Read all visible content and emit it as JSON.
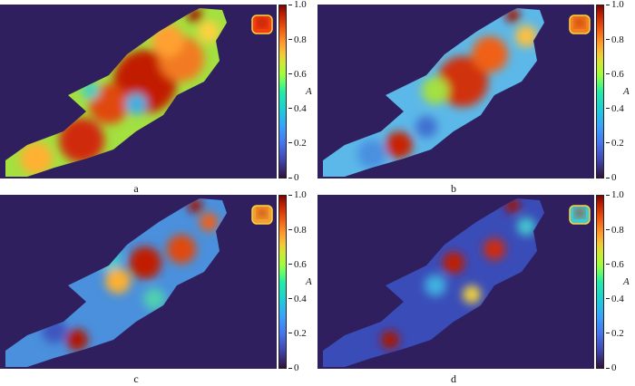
{
  "colorbar": {
    "label": "A",
    "ticks": [
      "0",
      "0.2",
      "0.4",
      "0.6",
      "0.8",
      "1.0"
    ]
  },
  "panels": [
    {
      "caption": "a"
    },
    {
      "caption": "b"
    },
    {
      "caption": "c"
    },
    {
      "caption": "d"
    }
  ],
  "colors": {
    "background": "#2f1f5e",
    "low": "#3b4bb8",
    "high": "#8b0a04"
  }
}
